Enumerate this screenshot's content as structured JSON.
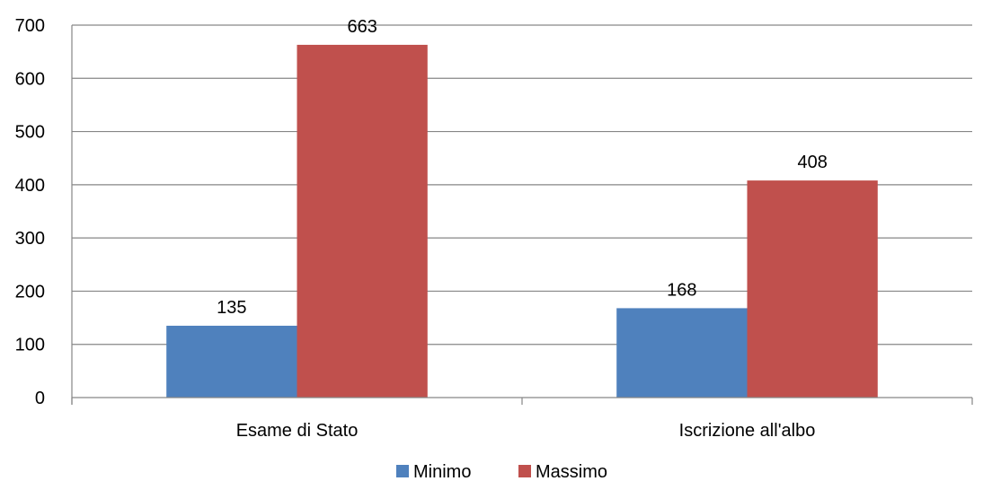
{
  "chart_data": {
    "type": "bar",
    "title": "",
    "xlabel": "",
    "ylabel": "",
    "categories": [
      "Esame di Stato",
      "Iscrizione all'albo"
    ],
    "series": [
      {
        "name": "Minimo",
        "values": [
          135,
          168
        ],
        "color": "#4F81BD"
      },
      {
        "name": "Massimo",
        "values": [
          663,
          408
        ],
        "color": "#C0504D"
      }
    ],
    "ylim": [
      0,
      700
    ],
    "yticks": [
      0,
      100,
      200,
      300,
      400,
      500,
      600,
      700
    ],
    "grid": true,
    "legend_position": "bottom"
  }
}
